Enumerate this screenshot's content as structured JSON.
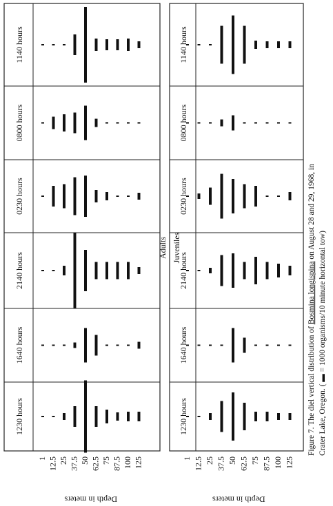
{
  "panels": [
    {
      "title": "Adults",
      "times": [
        "1140 hours",
        "0800 hours",
        "0230 hours",
        "2140 hours",
        "1640 hours",
        "1230 hours"
      ],
      "depths": [
        1,
        12.5,
        25,
        37.5,
        50,
        62.5,
        75,
        87.5,
        100,
        125
      ],
      "depth_label": "Depth in meters",
      "rows": [
        [
          2,
          2,
          2,
          30,
          110,
          18,
          16,
          16,
          18,
          10
        ],
        [
          2,
          18,
          25,
          30,
          50,
          12,
          2,
          2,
          2,
          2
        ],
        [
          2,
          30,
          35,
          55,
          60,
          18,
          12,
          2,
          2,
          10
        ],
        [
          2,
          2,
          14,
          110,
          60,
          25,
          25,
          25,
          25,
          10
        ],
        [
          2,
          2,
          2,
          8,
          50,
          30,
          2,
          2,
          2,
          10
        ],
        [
          2,
          2,
          10,
          30,
          105,
          30,
          20,
          12,
          14,
          14
        ]
      ]
    },
    {
      "title": "Juveniles",
      "times": [
        "1140 hours",
        "0800 hours",
        "0230 hours",
        "2140 hours",
        "1640 hours",
        "1230 hours"
      ],
      "depths": [
        1,
        12.5,
        25,
        37.5,
        50,
        62.5,
        75,
        87.5,
        100,
        125
      ],
      "depth_label": "Depth in meters",
      "rows": [
        [
          2,
          2,
          2,
          55,
          85,
          55,
          12,
          10,
          10,
          10
        ],
        [
          2,
          2,
          2,
          10,
          22,
          2,
          2,
          2,
          2,
          2
        ],
        [
          2,
          8,
          25,
          65,
          50,
          35,
          30,
          2,
          2,
          12
        ],
        [
          2,
          2,
          8,
          45,
          50,
          25,
          40,
          25,
          20,
          14
        ],
        [
          2,
          2,
          2,
          2,
          50,
          22,
          2,
          2,
          2,
          2
        ],
        [
          2,
          2,
          10,
          45,
          70,
          40,
          14,
          14,
          10,
          10
        ]
      ]
    }
  ],
  "caption": {
    "line1": [
      "Figure 7.  The diel vertical distribution of ",
      "Bosmina longispina",
      " on August 28 and 29, 1968, in"
    ],
    "line2": [
      "Crater Lake, Oregon.  ( ",
      " = 1000 organisms/10 minute horizontal tow)"
    ]
  }
}
